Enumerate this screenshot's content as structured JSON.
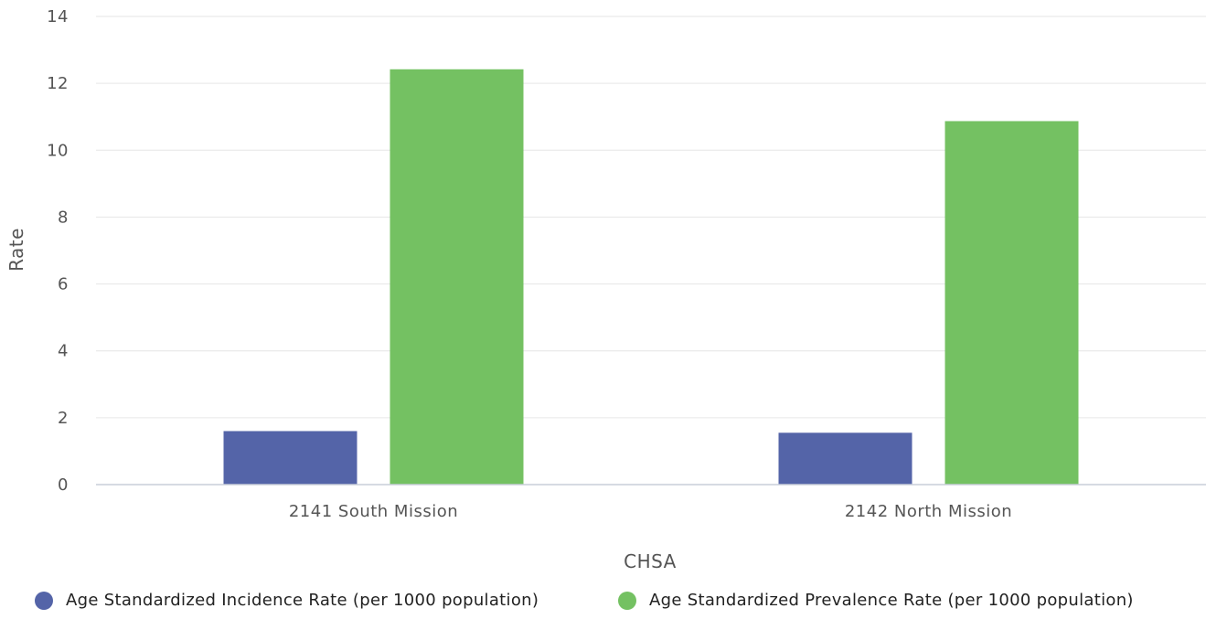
{
  "chart_data": {
    "type": "bar",
    "categories": [
      "2141 South Mission",
      "2142 North Mission"
    ],
    "series": [
      {
        "name": "Age Standardized Incidence Rate (per 1000 population)",
        "values": [
          1.6,
          1.55
        ],
        "color": "#5464a8"
      },
      {
        "name": "Age Standardized Prevalence Rate (per 1000 population)",
        "values": [
          12.42,
          10.87
        ],
        "color": "#74c162"
      }
    ],
    "xlabel": "CHSA",
    "ylabel": "Rate",
    "ylim": [
      0,
      14
    ],
    "yticks": [
      "0",
      "2",
      "4",
      "6",
      "8",
      "10",
      "12",
      "14"
    ],
    "grid": true,
    "legend_position": "bottom"
  }
}
